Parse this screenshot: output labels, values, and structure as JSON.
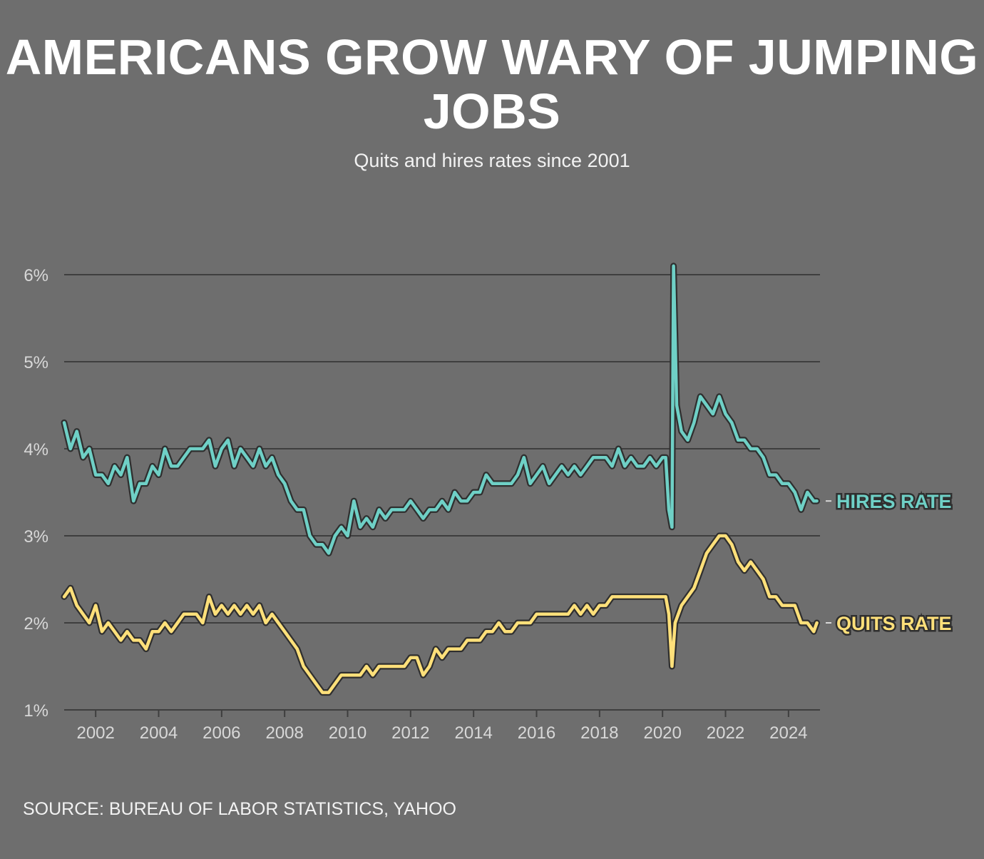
{
  "title": "AMERICANS GROW WARY OF JUMPING JOBS",
  "subtitle": "Quits and hires rates since 2001",
  "source": "SOURCE: BUREAU OF LABOR STATISTICS, YAHOO",
  "colors": {
    "background": "#6e6e6e",
    "hires": "#6fd0c6",
    "quits": "#ffe07a",
    "outline": "#2f2f2f",
    "grid": "#3e3e3e",
    "axis_text": "#d8d8d8"
  },
  "chart_data": {
    "type": "line",
    "title": "AMERICANS GROW WARY OF JUMPING JOBS",
    "subtitle": "Quits and hires rates since 2001",
    "xlabel": "",
    "ylabel": "",
    "xlim": [
      2001.0,
      2025.0
    ],
    "ylim": [
      1,
      6
    ],
    "y_ticks": [
      1,
      2,
      3,
      4,
      5,
      6
    ],
    "y_tick_labels": [
      "1%",
      "2%",
      "3%",
      "4%",
      "5%",
      "6%"
    ],
    "x_ticks": [
      2002,
      2004,
      2006,
      2008,
      2010,
      2012,
      2014,
      2016,
      2018,
      2020,
      2022,
      2024
    ],
    "x_tick_labels": [
      "2002",
      "2004",
      "2006",
      "2008",
      "2010",
      "2012",
      "2014",
      "2016",
      "2018",
      "2020",
      "2022",
      "2024"
    ],
    "grid": true,
    "legend": "direct labels at right end of lines",
    "series": [
      {
        "name": "HIRES RATE",
        "color": "#6fd0c6",
        "x": [
          2001.0,
          2001.2,
          2001.4,
          2001.6,
          2001.8,
          2002.0,
          2002.2,
          2002.4,
          2002.6,
          2002.8,
          2003.0,
          2003.2,
          2003.4,
          2003.6,
          2003.8,
          2004.0,
          2004.2,
          2004.4,
          2004.6,
          2004.8,
          2005.0,
          2005.2,
          2005.4,
          2005.6,
          2005.8,
          2006.0,
          2006.2,
          2006.4,
          2006.6,
          2006.8,
          2007.0,
          2007.2,
          2007.4,
          2007.6,
          2007.8,
          2008.0,
          2008.2,
          2008.4,
          2008.6,
          2008.8,
          2009.0,
          2009.2,
          2009.4,
          2009.6,
          2009.8,
          2010.0,
          2010.2,
          2010.4,
          2010.6,
          2010.8,
          2011.0,
          2011.2,
          2011.4,
          2011.6,
          2011.8,
          2012.0,
          2012.2,
          2012.4,
          2012.6,
          2012.8,
          2013.0,
          2013.2,
          2013.4,
          2013.6,
          2013.8,
          2014.0,
          2014.2,
          2014.4,
          2014.6,
          2014.8,
          2015.0,
          2015.2,
          2015.4,
          2015.6,
          2015.8,
          2016.0,
          2016.2,
          2016.4,
          2016.6,
          2016.8,
          2017.0,
          2017.2,
          2017.4,
          2017.6,
          2017.8,
          2018.0,
          2018.2,
          2018.4,
          2018.6,
          2018.8,
          2019.0,
          2019.2,
          2019.4,
          2019.6,
          2019.8,
          2020.0,
          2020.1,
          2020.2,
          2020.3,
          2020.35,
          2020.45,
          2020.6,
          2020.8,
          2021.0,
          2021.2,
          2021.4,
          2021.6,
          2021.8,
          2022.0,
          2022.2,
          2022.4,
          2022.6,
          2022.8,
          2023.0,
          2023.2,
          2023.4,
          2023.6,
          2023.8,
          2024.0,
          2024.2,
          2024.4,
          2024.6,
          2024.8,
          2024.9
        ],
        "values": [
          4.3,
          4.0,
          4.2,
          3.9,
          4.0,
          3.7,
          3.7,
          3.6,
          3.8,
          3.7,
          3.9,
          3.4,
          3.6,
          3.6,
          3.8,
          3.7,
          4.0,
          3.8,
          3.8,
          3.9,
          4.0,
          4.0,
          4.0,
          4.1,
          3.8,
          4.0,
          4.1,
          3.8,
          4.0,
          3.9,
          3.8,
          4.0,
          3.8,
          3.9,
          3.7,
          3.6,
          3.4,
          3.3,
          3.3,
          3.0,
          2.9,
          2.9,
          2.8,
          3.0,
          3.1,
          3.0,
          3.4,
          3.1,
          3.2,
          3.1,
          3.3,
          3.2,
          3.3,
          3.3,
          3.3,
          3.4,
          3.3,
          3.2,
          3.3,
          3.3,
          3.4,
          3.3,
          3.5,
          3.4,
          3.4,
          3.5,
          3.5,
          3.7,
          3.6,
          3.6,
          3.6,
          3.6,
          3.7,
          3.9,
          3.6,
          3.7,
          3.8,
          3.6,
          3.7,
          3.8,
          3.7,
          3.8,
          3.7,
          3.8,
          3.9,
          3.9,
          3.9,
          3.8,
          4.0,
          3.8,
          3.9,
          3.8,
          3.8,
          3.9,
          3.8,
          3.9,
          3.9,
          3.3,
          3.1,
          6.1,
          4.5,
          4.2,
          4.1,
          4.3,
          4.6,
          4.5,
          4.4,
          4.6,
          4.4,
          4.3,
          4.1,
          4.1,
          4.0,
          4.0,
          3.9,
          3.7,
          3.7,
          3.6,
          3.6,
          3.5,
          3.3,
          3.5,
          3.4,
          3.4
        ]
      },
      {
        "name": "QUITS RATE",
        "color": "#ffe07a",
        "x": [
          2001.0,
          2001.2,
          2001.4,
          2001.6,
          2001.8,
          2002.0,
          2002.2,
          2002.4,
          2002.6,
          2002.8,
          2003.0,
          2003.2,
          2003.4,
          2003.6,
          2003.8,
          2004.0,
          2004.2,
          2004.4,
          2004.6,
          2004.8,
          2005.0,
          2005.2,
          2005.4,
          2005.6,
          2005.8,
          2006.0,
          2006.2,
          2006.4,
          2006.6,
          2006.8,
          2007.0,
          2007.2,
          2007.4,
          2007.6,
          2007.8,
          2008.0,
          2008.2,
          2008.4,
          2008.6,
          2008.8,
          2009.0,
          2009.2,
          2009.4,
          2009.6,
          2009.8,
          2010.0,
          2010.2,
          2010.4,
          2010.6,
          2010.8,
          2011.0,
          2011.2,
          2011.4,
          2011.6,
          2011.8,
          2012.0,
          2012.2,
          2012.4,
          2012.6,
          2012.8,
          2013.0,
          2013.2,
          2013.4,
          2013.6,
          2013.8,
          2014.0,
          2014.2,
          2014.4,
          2014.6,
          2014.8,
          2015.0,
          2015.2,
          2015.4,
          2015.6,
          2015.8,
          2016.0,
          2016.2,
          2016.4,
          2016.6,
          2016.8,
          2017.0,
          2017.2,
          2017.4,
          2017.6,
          2017.8,
          2018.0,
          2018.2,
          2018.4,
          2018.6,
          2018.8,
          2019.0,
          2019.2,
          2019.4,
          2019.6,
          2019.8,
          2020.0,
          2020.1,
          2020.2,
          2020.3,
          2020.4,
          2020.6,
          2020.8,
          2021.0,
          2021.2,
          2021.4,
          2021.6,
          2021.8,
          2022.0,
          2022.2,
          2022.4,
          2022.6,
          2022.8,
          2023.0,
          2023.2,
          2023.4,
          2023.6,
          2023.8,
          2024.0,
          2024.2,
          2024.4,
          2024.6,
          2024.8,
          2024.9
        ],
        "values": [
          2.3,
          2.4,
          2.2,
          2.1,
          2.0,
          2.2,
          1.9,
          2.0,
          1.9,
          1.8,
          1.9,
          1.8,
          1.8,
          1.7,
          1.9,
          1.9,
          2.0,
          1.9,
          2.0,
          2.1,
          2.1,
          2.1,
          2.0,
          2.3,
          2.1,
          2.2,
          2.1,
          2.2,
          2.1,
          2.2,
          2.1,
          2.2,
          2.0,
          2.1,
          2.0,
          1.9,
          1.8,
          1.7,
          1.5,
          1.4,
          1.3,
          1.2,
          1.2,
          1.3,
          1.4,
          1.4,
          1.4,
          1.4,
          1.5,
          1.4,
          1.5,
          1.5,
          1.5,
          1.5,
          1.5,
          1.6,
          1.6,
          1.4,
          1.5,
          1.7,
          1.6,
          1.7,
          1.7,
          1.7,
          1.8,
          1.8,
          1.8,
          1.9,
          1.9,
          2.0,
          1.9,
          1.9,
          2.0,
          2.0,
          2.0,
          2.1,
          2.1,
          2.1,
          2.1,
          2.1,
          2.1,
          2.2,
          2.1,
          2.2,
          2.1,
          2.2,
          2.2,
          2.3,
          2.3,
          2.3,
          2.3,
          2.3,
          2.3,
          2.3,
          2.3,
          2.3,
          2.3,
          2.1,
          1.5,
          2.0,
          2.2,
          2.3,
          2.4,
          2.6,
          2.8,
          2.9,
          3.0,
          3.0,
          2.9,
          2.7,
          2.6,
          2.7,
          2.6,
          2.5,
          2.3,
          2.3,
          2.2,
          2.2,
          2.2,
          2.0,
          2.0,
          1.9,
          2.0
        ]
      }
    ]
  }
}
